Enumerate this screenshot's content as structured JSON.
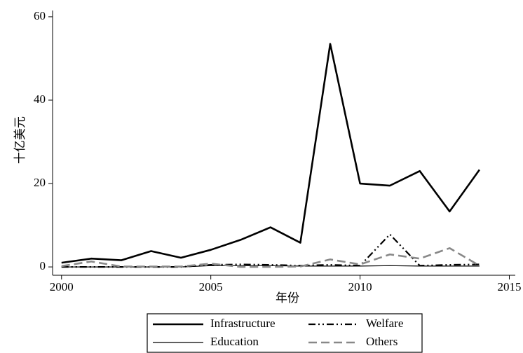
{
  "chart_data": {
    "type": "line",
    "x": [
      2000,
      2001,
      2002,
      2003,
      2004,
      2005,
      2006,
      2007,
      2008,
      2009,
      2010,
      2011,
      2012,
      2013,
      2014
    ],
    "series": [
      {
        "name": "Infrastructure",
        "color": "#000000",
        "width": 2.6,
        "dash": "none",
        "values": [
          1.0,
          2.0,
          1.6,
          3.8,
          2.2,
          4.1,
          6.5,
          9.5,
          5.8,
          53.5,
          20.0,
          19.5,
          23.0,
          13.3,
          23.3
        ]
      },
      {
        "name": "Education",
        "color": "#000000",
        "width": 1.2,
        "dash": "none",
        "values": [
          0,
          0,
          0,
          0,
          0,
          0.3,
          0.3,
          0.3,
          0.2,
          0.2,
          0.2,
          0.3,
          0.2,
          0.2,
          0.2
        ]
      },
      {
        "name": "Welfare",
        "color": "#000000",
        "width": 2.2,
        "dash": "10 4 2 4 2 4",
        "values": [
          0,
          0,
          0,
          0,
          0,
          0.5,
          0.6,
          0.5,
          0.3,
          0.5,
          0.3,
          7.8,
          0.3,
          0.5,
          0.6
        ]
      },
      {
        "name": "Others",
        "color": "#888888",
        "width": 2.6,
        "dash": "12 6",
        "values": [
          0.2,
          1.3,
          0.1,
          0.1,
          0.1,
          0.8,
          0,
          0,
          0.1,
          1.8,
          0.6,
          3.0,
          2.0,
          4.5,
          0.3
        ]
      }
    ],
    "xlabel": "年份",
    "ylabel": "十亿美元",
    "xlim": [
      1999.7,
      2015.2
    ],
    "xticks": [
      2000,
      2005,
      2010,
      2015
    ],
    "ylim": [
      -2,
      61.5
    ],
    "yticks": [
      0,
      20,
      40,
      60
    ]
  }
}
